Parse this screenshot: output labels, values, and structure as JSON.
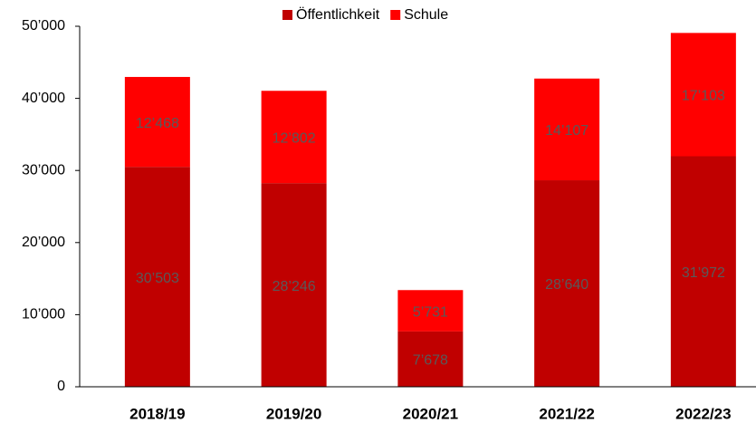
{
  "chart_data": {
    "type": "bar",
    "stacked": true,
    "categories": [
      "2018/19",
      "2019/20",
      "2020/21",
      "2021/22",
      "2022/23"
    ],
    "series": [
      {
        "name": "Öffentlichkeit",
        "color": "#c00000",
        "values": [
          30503,
          28246,
          7678,
          28640,
          31972
        ],
        "value_labels": [
          "30’503",
          "28’246",
          "7’678",
          "28’640",
          "31’972"
        ]
      },
      {
        "name": "Schule",
        "color": "#ff0000",
        "values": [
          12468,
          12802,
          5731,
          14107,
          17103
        ],
        "value_labels": [
          "12’468",
          "12’802",
          "5’731",
          "14’107",
          "17’103"
        ]
      }
    ],
    "ylim": [
      0,
      50000
    ],
    "yticks": [
      0,
      {
        "value": 10000,
        "label": "10’000"
      },
      {
        "value": 20000,
        "label": "20’000"
      },
      {
        "value": 30000,
        "label": "30’000"
      },
      {
        "value": 40000,
        "label": "40’000"
      },
      {
        "value": 50000,
        "label": "50’000"
      }
    ],
    "grid": false,
    "legend": "top"
  }
}
